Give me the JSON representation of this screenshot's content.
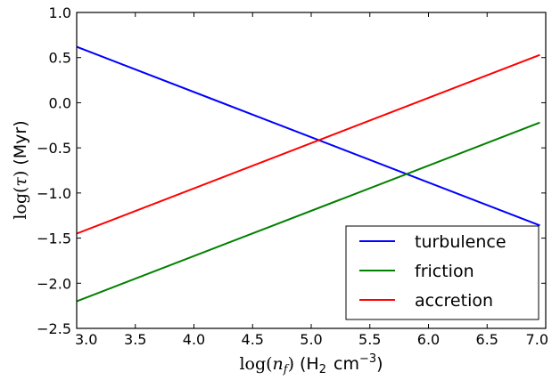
{
  "chart_data": {
    "type": "line",
    "title": "",
    "xlim": [
      3.0,
      7.0
    ],
    "ylim": [
      -2.5,
      1.0
    ],
    "x_ticks": [
      "3.0",
      "3.5",
      "4.0",
      "4.5",
      "5.0",
      "5.5",
      "6.0",
      "6.5",
      "7.0"
    ],
    "y_ticks": [
      "1.0",
      "0.5",
      "0.0",
      "−0.5",
      "−1.0",
      "−1.5",
      "−2.0",
      "−2.5"
    ],
    "xlabel": {
      "fn": "log(",
      "var": "n",
      "sub": "f",
      "close": ")",
      "unit_a": "(H",
      "unit_a_sub": "2",
      "unit_b": "cm",
      "unit_b_sup": "−3",
      "unit_close": ")"
    },
    "ylabel": {
      "fn": "log(",
      "var": "τ",
      "close": ")",
      "unit": "(Myr)"
    },
    "legend_position": "lower-right",
    "grid": false,
    "series": [
      {
        "name": "turbulence",
        "color": "#0000ff",
        "x": [
          3.0,
          6.95
        ],
        "y": [
          0.62,
          -1.36
        ]
      },
      {
        "name": "friction",
        "color": "#008000",
        "x": [
          3.0,
          6.95
        ],
        "y": [
          -2.2,
          -0.22
        ]
      },
      {
        "name": "accretion",
        "color": "#ff0000",
        "x": [
          3.0,
          6.95
        ],
        "y": [
          -1.45,
          0.53
        ]
      }
    ]
  }
}
